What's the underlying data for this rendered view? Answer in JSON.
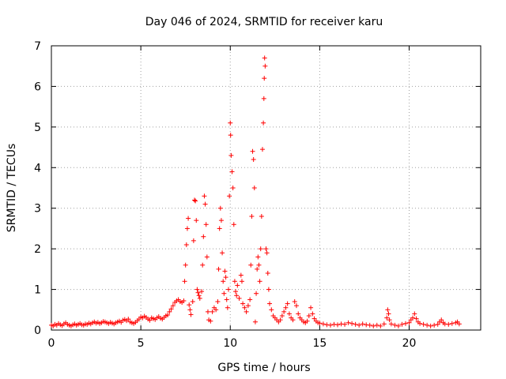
{
  "chart_data": {
    "type": "scatter",
    "title": "Day 046 of 2024, SRMTID for receiver karu",
    "xlabel": "GPS time / hours",
    "ylabel": "SRMTID / TECUs",
    "xlim": [
      0,
      24
    ],
    "ylim": [
      0,
      7
    ],
    "x_ticks": [
      "0",
      "5",
      "10",
      "15",
      "20"
    ],
    "x_tick_values": [
      0,
      5,
      10,
      15,
      20
    ],
    "y_ticks": [
      "0",
      "1",
      "2",
      "3",
      "4",
      "5",
      "6",
      "7"
    ],
    "y_tick_values": [
      0,
      1,
      2,
      3,
      4,
      5,
      6,
      7
    ],
    "grid": true,
    "marker": "+",
    "color": "#ff0000",
    "series": [
      {
        "name": "SRMTID",
        "points": [
          [
            0.0,
            0.12
          ],
          [
            0.1,
            0.1
          ],
          [
            0.2,
            0.14
          ],
          [
            0.3,
            0.12
          ],
          [
            0.4,
            0.16
          ],
          [
            0.5,
            0.13
          ],
          [
            0.6,
            0.11
          ],
          [
            0.7,
            0.15
          ],
          [
            0.8,
            0.18
          ],
          [
            0.9,
            0.14
          ],
          [
            1.0,
            0.12
          ],
          [
            1.1,
            0.1
          ],
          [
            1.2,
            0.13
          ],
          [
            1.3,
            0.15
          ],
          [
            1.4,
            0.12
          ],
          [
            1.5,
            0.14
          ],
          [
            1.6,
            0.16
          ],
          [
            1.7,
            0.13
          ],
          [
            1.8,
            0.12
          ],
          [
            1.9,
            0.15
          ],
          [
            2.0,
            0.14
          ],
          [
            2.1,
            0.17
          ],
          [
            2.2,
            0.15
          ],
          [
            2.3,
            0.18
          ],
          [
            2.4,
            0.2
          ],
          [
            2.5,
            0.17
          ],
          [
            2.6,
            0.19
          ],
          [
            2.7,
            0.16
          ],
          [
            2.8,
            0.18
          ],
          [
            2.9,
            0.21
          ],
          [
            3.0,
            0.2
          ],
          [
            3.1,
            0.18
          ],
          [
            3.2,
            0.16
          ],
          [
            3.3,
            0.19
          ],
          [
            3.4,
            0.17
          ],
          [
            3.5,
            0.15
          ],
          [
            3.6,
            0.18
          ],
          [
            3.7,
            0.2
          ],
          [
            3.8,
            0.22
          ],
          [
            3.9,
            0.19
          ],
          [
            4.0,
            0.24
          ],
          [
            4.1,
            0.26
          ],
          [
            4.2,
            0.23
          ],
          [
            4.3,
            0.27
          ],
          [
            4.4,
            0.2
          ],
          [
            4.5,
            0.18
          ],
          [
            4.6,
            0.16
          ],
          [
            4.7,
            0.19
          ],
          [
            4.8,
            0.23
          ],
          [
            4.9,
            0.27
          ],
          [
            5.0,
            0.32
          ],
          [
            5.1,
            0.3
          ],
          [
            5.2,
            0.34
          ],
          [
            5.3,
            0.31
          ],
          [
            5.4,
            0.27
          ],
          [
            5.5,
            0.24
          ],
          [
            5.6,
            0.3
          ],
          [
            5.7,
            0.28
          ],
          [
            5.8,
            0.26
          ],
          [
            5.9,
            0.3
          ],
          [
            6.0,
            0.33
          ],
          [
            6.1,
            0.29
          ],
          [
            6.2,
            0.27
          ],
          [
            6.3,
            0.31
          ],
          [
            6.4,
            0.35
          ],
          [
            6.5,
            0.37
          ],
          [
            6.6,
            0.45
          ],
          [
            6.7,
            0.52
          ],
          [
            6.8,
            0.6
          ],
          [
            6.9,
            0.68
          ],
          [
            7.0,
            0.72
          ],
          [
            7.1,
            0.75
          ],
          [
            7.2,
            0.7
          ],
          [
            7.3,
            0.68
          ],
          [
            7.4,
            0.72
          ],
          [
            7.45,
            1.2
          ],
          [
            7.5,
            1.6
          ],
          [
            7.55,
            2.1
          ],
          [
            7.6,
            2.5
          ],
          [
            7.65,
            2.75
          ],
          [
            7.7,
            0.62
          ],
          [
            7.75,
            0.5
          ],
          [
            7.8,
            0.38
          ],
          [
            7.9,
            0.7
          ],
          [
            7.95,
            2.2
          ],
          [
            8.0,
            3.2
          ],
          [
            8.05,
            3.18
          ],
          [
            8.1,
            2.7
          ],
          [
            8.15,
            1.0
          ],
          [
            8.2,
            0.92
          ],
          [
            8.25,
            0.85
          ],
          [
            8.3,
            0.78
          ],
          [
            8.4,
            0.95
          ],
          [
            8.45,
            1.6
          ],
          [
            8.5,
            2.3
          ],
          [
            8.55,
            3.3
          ],
          [
            8.6,
            3.1
          ],
          [
            8.65,
            2.6
          ],
          [
            8.7,
            1.8
          ],
          [
            8.75,
            0.45
          ],
          [
            8.8,
            0.25
          ],
          [
            8.9,
            0.22
          ],
          [
            9.0,
            0.45
          ],
          [
            9.1,
            0.55
          ],
          [
            9.2,
            0.5
          ],
          [
            9.3,
            0.7
          ],
          [
            9.35,
            1.5
          ],
          [
            9.4,
            2.5
          ],
          [
            9.45,
            3.0
          ],
          [
            9.5,
            2.7
          ],
          [
            9.55,
            1.9
          ],
          [
            9.6,
            1.2
          ],
          [
            9.65,
            0.9
          ],
          [
            9.7,
            1.45
          ],
          [
            9.75,
            1.3
          ],
          [
            9.8,
            0.75
          ],
          [
            9.85,
            0.55
          ],
          [
            9.9,
            1.0
          ],
          [
            9.95,
            3.3
          ],
          [
            10.0,
            5.1
          ],
          [
            10.02,
            4.8
          ],
          [
            10.05,
            4.3
          ],
          [
            10.1,
            3.9
          ],
          [
            10.15,
            3.5
          ],
          [
            10.2,
            2.6
          ],
          [
            10.25,
            1.2
          ],
          [
            10.3,
            0.95
          ],
          [
            10.35,
            0.85
          ],
          [
            10.4,
            1.1
          ],
          [
            10.5,
            0.78
          ],
          [
            10.6,
            1.35
          ],
          [
            10.65,
            1.2
          ],
          [
            10.7,
            0.65
          ],
          [
            10.8,
            0.55
          ],
          [
            10.9,
            0.45
          ],
          [
            11.0,
            0.6
          ],
          [
            11.1,
            0.75
          ],
          [
            11.15,
            1.6
          ],
          [
            11.2,
            2.8
          ],
          [
            11.25,
            4.4
          ],
          [
            11.3,
            4.2
          ],
          [
            11.35,
            3.5
          ],
          [
            11.4,
            0.2
          ],
          [
            11.45,
            0.9
          ],
          [
            11.5,
            1.5
          ],
          [
            11.55,
            1.8
          ],
          [
            11.6,
            1.6
          ],
          [
            11.65,
            1.2
          ],
          [
            11.7,
            2.0
          ],
          [
            11.75,
            2.8
          ],
          [
            11.8,
            4.45
          ],
          [
            11.85,
            5.1
          ],
          [
            11.88,
            5.7
          ],
          [
            11.9,
            6.2
          ],
          [
            11.92,
            6.7
          ],
          [
            11.95,
            6.5
          ],
          [
            12.0,
            2.0
          ],
          [
            12.05,
            1.9
          ],
          [
            12.1,
            1.4
          ],
          [
            12.15,
            1.0
          ],
          [
            12.2,
            0.65
          ],
          [
            12.3,
            0.5
          ],
          [
            12.4,
            0.35
          ],
          [
            12.5,
            0.3
          ],
          [
            12.6,
            0.25
          ],
          [
            12.7,
            0.2
          ],
          [
            12.8,
            0.25
          ],
          [
            12.9,
            0.35
          ],
          [
            13.0,
            0.45
          ],
          [
            13.1,
            0.55
          ],
          [
            13.2,
            0.65
          ],
          [
            13.3,
            0.4
          ],
          [
            13.4,
            0.3
          ],
          [
            13.5,
            0.25
          ],
          [
            13.6,
            0.7
          ],
          [
            13.7,
            0.6
          ],
          [
            13.8,
            0.4
          ],
          [
            13.9,
            0.3
          ],
          [
            14.0,
            0.25
          ],
          [
            14.1,
            0.2
          ],
          [
            14.2,
            0.18
          ],
          [
            14.3,
            0.22
          ],
          [
            14.4,
            0.35
          ],
          [
            14.5,
            0.55
          ],
          [
            14.6,
            0.4
          ],
          [
            14.7,
            0.28
          ],
          [
            14.8,
            0.22
          ],
          [
            14.9,
            0.18
          ],
          [
            15.0,
            0.17
          ],
          [
            15.2,
            0.15
          ],
          [
            15.4,
            0.13
          ],
          [
            15.6,
            0.12
          ],
          [
            15.8,
            0.14
          ],
          [
            16.0,
            0.13
          ],
          [
            16.2,
            0.15
          ],
          [
            16.4,
            0.14
          ],
          [
            16.6,
            0.18
          ],
          [
            16.8,
            0.16
          ],
          [
            17.0,
            0.14
          ],
          [
            17.2,
            0.12
          ],
          [
            17.4,
            0.15
          ],
          [
            17.6,
            0.13
          ],
          [
            17.8,
            0.12
          ],
          [
            18.0,
            0.1
          ],
          [
            18.2,
            0.12
          ],
          [
            18.4,
            0.1
          ],
          [
            18.6,
            0.15
          ],
          [
            18.75,
            0.3
          ],
          [
            18.8,
            0.5
          ],
          [
            18.85,
            0.4
          ],
          [
            18.9,
            0.25
          ],
          [
            19.0,
            0.15
          ],
          [
            19.2,
            0.12
          ],
          [
            19.4,
            0.1
          ],
          [
            19.6,
            0.14
          ],
          [
            19.8,
            0.16
          ],
          [
            20.0,
            0.18
          ],
          [
            20.1,
            0.25
          ],
          [
            20.2,
            0.3
          ],
          [
            20.3,
            0.4
          ],
          [
            20.4,
            0.28
          ],
          [
            20.5,
            0.2
          ],
          [
            20.6,
            0.16
          ],
          [
            20.8,
            0.14
          ],
          [
            21.0,
            0.12
          ],
          [
            21.2,
            0.1
          ],
          [
            21.4,
            0.12
          ],
          [
            21.6,
            0.14
          ],
          [
            21.7,
            0.2
          ],
          [
            21.8,
            0.25
          ],
          [
            21.9,
            0.18
          ],
          [
            22.0,
            0.15
          ],
          [
            22.2,
            0.14
          ],
          [
            22.4,
            0.16
          ],
          [
            22.6,
            0.18
          ],
          [
            22.7,
            0.2
          ],
          [
            22.8,
            0.15
          ]
        ]
      }
    ]
  }
}
